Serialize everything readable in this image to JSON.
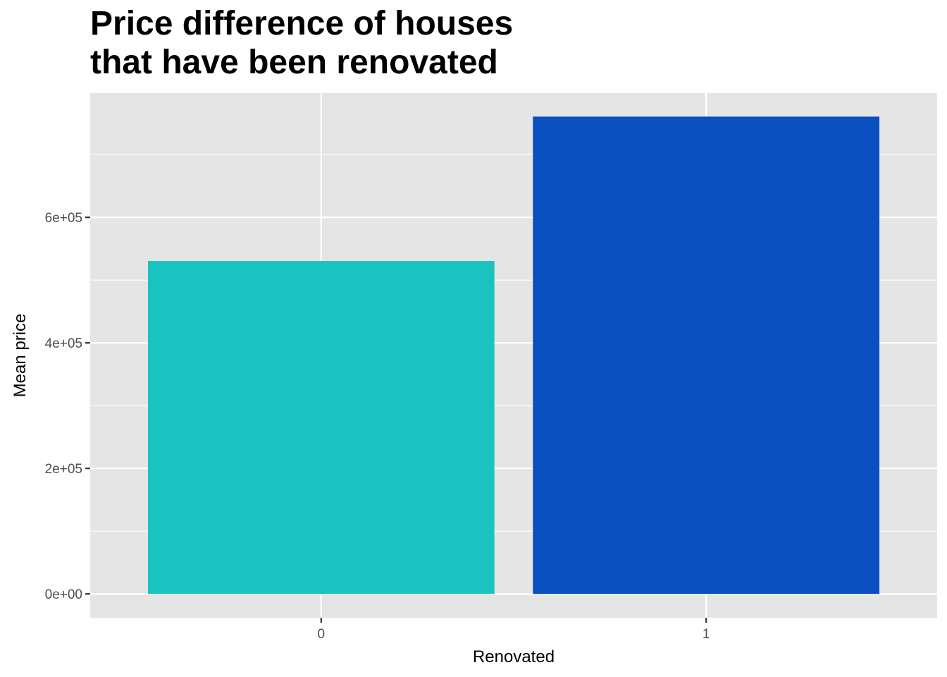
{
  "chart_data": {
    "type": "bar",
    "title_lines": [
      "Price difference of houses",
      "that have been renovated"
    ],
    "xlabel": "Renovated",
    "ylabel": "Mean price",
    "categories": [
      "0",
      "1"
    ],
    "values": [
      530500,
      760500
    ],
    "bar_colors": [
      "#1BC3C0",
      "#0A4FBF"
    ],
    "ylim": [
      -38000,
      798000
    ],
    "yticks": [
      0,
      200000,
      400000,
      600000
    ],
    "ytick_labels": [
      "0e+00",
      "2e+05",
      "4e+05",
      "6e+05"
    ],
    "panel_background": "#E5E5E5",
    "grid": true,
    "legend": "none"
  }
}
